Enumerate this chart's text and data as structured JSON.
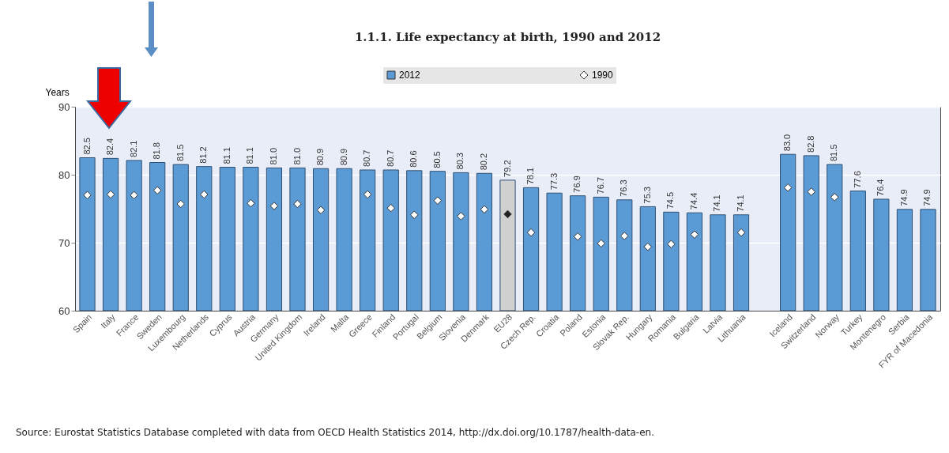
{
  "chart_data": {
    "type": "bar",
    "title": "1.1.1.  Life expectancy at birth, 1990 and 2012",
    "ylabel": "Years",
    "categories": [
      "Spain",
      "Italy",
      "France",
      "Sweden",
      "Luxembourg",
      "Netherlands",
      "Cyprus",
      "Austria",
      "Germany",
      "United Kingdom",
      "Ireland",
      "Malta",
      "Greece",
      "Finland",
      "Portugal",
      "Belgium",
      "Slovenia",
      "Denmark",
      "EU28",
      "Czech Rep.",
      "Croatia",
      "Poland",
      "Estonia",
      "Slovak Rep.",
      "Hungary",
      "Romania",
      "Bulgaria",
      "Latvia",
      "Lithuania",
      null,
      "Iceland",
      "Switzerland",
      "Norway",
      "Turkey",
      "Montenegro",
      "Serbia",
      "FYR of Macedonia"
    ],
    "series": [
      {
        "name": "2012",
        "color": "#5b9bd5",
        "value_labels": [
          "82.5",
          "82.4",
          "82.1",
          "81.8",
          "81.5",
          "81.2",
          "81.1",
          "81.1",
          "81.0",
          "81.0",
          "80.9",
          "80.9",
          "80.7",
          "80.7",
          "80.6",
          "80.5",
          "80.3",
          "80.2",
          "79.2",
          "78.1",
          "77.3",
          "76.9",
          "76.7",
          "76.3",
          "75.3",
          "74.5",
          "74.4",
          "74.1",
          "74.1",
          null,
          "83.0",
          "82.8",
          "81.5",
          "77.6",
          "76.4",
          "74.9",
          "74.9"
        ],
        "colors": [
          "#5b9bd5",
          "#5b9bd5",
          "#5b9bd5",
          "#5b9bd5",
          "#5b9bd5",
          "#5b9bd5",
          "#5b9bd5",
          "#5b9bd5",
          "#5b9bd5",
          "#5b9bd5",
          "#5b9bd5",
          "#5b9bd5",
          "#5b9bd5",
          "#5b9bd5",
          "#5b9bd5",
          "#5b9bd5",
          "#5b9bd5",
          "#5b9bd5",
          "#d0d0d0",
          "#5b9bd5",
          "#5b9bd5",
          "#5b9bd5",
          "#5b9bd5",
          "#5b9bd5",
          "#5b9bd5",
          "#5b9bd5",
          "#5b9bd5",
          "#5b9bd5",
          "#5b9bd5",
          "#5b9bd5",
          "#5b9bd5",
          "#5b9bd5",
          "#5b9bd5",
          "#5b9bd5",
          "#5b9bd5",
          "#5b9bd5",
          "#5b9bd5"
        ],
        "values": [
          82.5,
          82.4,
          82.1,
          81.8,
          81.5,
          81.2,
          81.1,
          81.1,
          81.0,
          81.0,
          80.9,
          80.9,
          80.7,
          80.7,
          80.6,
          80.5,
          80.3,
          80.2,
          79.2,
          78.1,
          77.3,
          76.9,
          76.7,
          76.3,
          75.3,
          74.5,
          74.4,
          74.1,
          74.1,
          null,
          83.0,
          82.8,
          81.5,
          77.6,
          76.4,
          74.9,
          74.9
        ]
      },
      {
        "name": "1990",
        "type": "scatter",
        "marker": "diamond",
        "color": "#ffffff",
        "colors": [
          "#ffffff",
          "#ffffff",
          "#ffffff",
          "#ffffff",
          "#ffffff",
          "#ffffff",
          "#ffffff",
          "#ffffff",
          "#ffffff",
          "#ffffff",
          "#ffffff",
          "#ffffff",
          "#ffffff",
          "#ffffff",
          "#ffffff",
          "#ffffff",
          "#ffffff",
          "#ffffff",
          "#222222",
          "#ffffff",
          "#ffffff",
          "#ffffff",
          "#ffffff",
          "#ffffff",
          "#ffffff",
          "#ffffff",
          "#ffffff",
          "#ffffff",
          "#ffffff",
          "#ffffff",
          "#ffffff",
          "#ffffff",
          "#ffffff",
          "#ffffff",
          "#ffffff",
          "#ffffff",
          "#ffffff"
        ],
        "values": [
          77.0,
          77.1,
          77.0,
          77.7,
          75.7,
          77.1,
          null,
          75.8,
          75.4,
          75.7,
          74.8,
          null,
          77.1,
          75.1,
          74.1,
          76.2,
          73.9,
          74.9,
          74.2,
          71.5,
          null,
          70.9,
          69.9,
          71.0,
          69.4,
          69.8,
          71.2,
          null,
          71.5,
          null,
          78.1,
          77.5,
          76.7,
          null,
          null,
          null,
          null
        ]
      }
    ],
    "ylim": [
      60,
      90
    ],
    "yticks": [
      60,
      70,
      80,
      90
    ],
    "grid": "y",
    "legend": "top",
    "annotations": [
      "Source: Eurostat Statistics Database completed with data from OECD Health Statistics 2014, http://dx.doi.org/10.1787/health-data-en."
    ]
  }
}
